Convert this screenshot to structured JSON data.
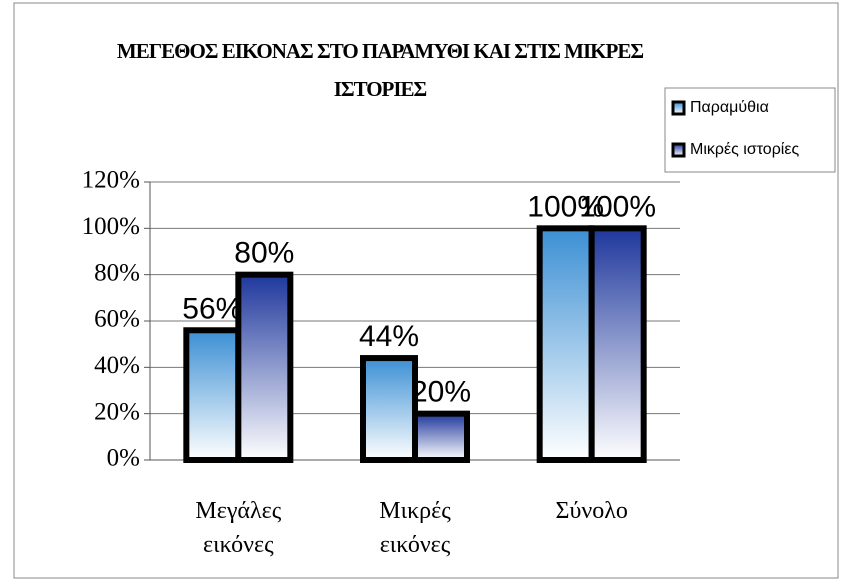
{
  "chart_data": {
    "type": "bar",
    "title": "ΜΕΓΕΘΟΣ ΕΙΚΟΝΑΣ ΣΤΟ ΠΑΡΑΜΥΘΙ ΚΑΙ ΣΤΙΣ ΜΙΚΡΕΣ ΙΣΤΟΡΙΕΣ",
    "categories": [
      "Μεγάλες εικόνες",
      "Μικρές εικόνες",
      "Σύνολο"
    ],
    "series": [
      {
        "name": "Παραμύθια",
        "color": "#3b8fd4",
        "values": [
          56,
          44,
          100
        ],
        "value_labels": [
          "56%",
          "44%",
          "100%"
        ]
      },
      {
        "name": "Μικρές ιστορίες",
        "color": "#1e379c",
        "values": [
          80,
          20,
          100
        ],
        "value_labels": [
          "80%",
          "20%",
          "100%"
        ]
      }
    ],
    "ylim": [
      0,
      120
    ],
    "yticks": [
      {
        "value": 0,
        "label": "0%"
      },
      {
        "value": 20,
        "label": "20%"
      },
      {
        "value": 40,
        "label": "40%"
      },
      {
        "value": 60,
        "label": "60%"
      },
      {
        "value": 80,
        "label": "80%"
      },
      {
        "value": 100,
        "label": "100%"
      },
      {
        "value": 120,
        "label": "120%"
      }
    ],
    "grid": true,
    "legend": "top-right"
  }
}
